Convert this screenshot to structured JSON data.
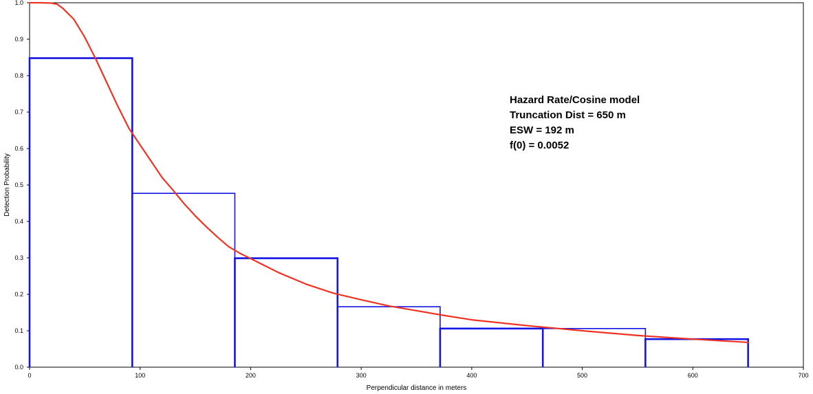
{
  "chart_data": {
    "type": "bar",
    "title": "",
    "xlabel": "Perpendicular distance in meters",
    "ylabel": "Detection Probability",
    "xlim": [
      0,
      700
    ],
    "ylim": [
      0.0,
      1.0
    ],
    "x_ticks": [
      {
        "value": 0,
        "label": "0"
      },
      {
        "value": 100,
        "label": "100"
      },
      {
        "value": 200,
        "label": "200"
      },
      {
        "value": 300,
        "label": "300"
      },
      {
        "value": 400,
        "label": "400"
      },
      {
        "value": 500,
        "label": "500"
      },
      {
        "value": 600,
        "label": "600"
      },
      {
        "value": 700,
        "label": "700"
      }
    ],
    "y_ticks": [
      {
        "value": 0.0,
        "label": "0.0"
      },
      {
        "value": 0.1,
        "label": "0.1"
      },
      {
        "value": 0.2,
        "label": "0.2"
      },
      {
        "value": 0.3,
        "label": "0.3"
      },
      {
        "value": 0.4,
        "label": "0.4"
      },
      {
        "value": 0.5,
        "label": "0.5"
      },
      {
        "value": 0.6,
        "label": "0.6"
      },
      {
        "value": 0.7,
        "label": "0.7"
      },
      {
        "value": 0.8,
        "label": "0.8"
      },
      {
        "value": 0.9,
        "label": "0.9"
      },
      {
        "value": 1.0,
        "label": "1.0"
      }
    ],
    "grid": false,
    "bins": [
      {
        "x_start": 0,
        "x_end": 92.9,
        "value": 0.848
      },
      {
        "x_start": 92.9,
        "x_end": 185.7,
        "value": 0.477
      },
      {
        "x_start": 185.7,
        "x_end": 278.6,
        "value": 0.299
      },
      {
        "x_start": 278.6,
        "x_end": 371.4,
        "value": 0.166
      },
      {
        "x_start": 371.4,
        "x_end": 464.3,
        "value": 0.106
      },
      {
        "x_start": 464.3,
        "x_end": 557.1,
        "value": 0.106
      },
      {
        "x_start": 557.1,
        "x_end": 650,
        "value": 0.077
      }
    ],
    "fitted_curve": {
      "x": [
        0,
        10,
        20,
        25,
        30,
        40,
        50,
        60,
        70,
        80,
        90,
        100,
        110,
        120,
        130,
        140,
        150,
        160,
        170,
        180,
        190,
        200,
        225,
        250,
        275,
        300,
        325,
        350,
        375,
        400,
        450,
        500,
        550,
        600,
        650
      ],
      "y": [
        1.0,
        1.0,
        0.999,
        0.996,
        0.985,
        0.955,
        0.905,
        0.845,
        0.78,
        0.715,
        0.655,
        0.61,
        0.565,
        0.52,
        0.485,
        0.448,
        0.415,
        0.385,
        0.357,
        0.331,
        0.313,
        0.298,
        0.26,
        0.228,
        0.203,
        0.185,
        0.168,
        0.155,
        0.142,
        0.13,
        0.114,
        0.1,
        0.087,
        0.077,
        0.068
      ]
    },
    "annotation_lines": [
      "Hazard Rate/Cosine model",
      "Truncation Dist = 650 m",
      "ESW = 192 m",
      "f(0) = 0.0052"
    ],
    "colors": {
      "bins": "#1414e6",
      "curve": "#ee3322",
      "axes": "#000000",
      "background": "#ffffff"
    }
  }
}
